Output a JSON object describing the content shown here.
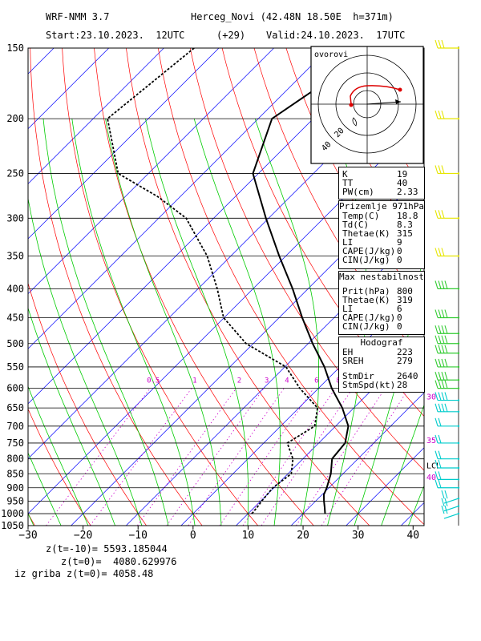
{
  "header": {
    "model": "WRF-NMM 3.7",
    "station": "Herceg_Novi (42.48N 18.50E  h=371m)",
    "start": "Start:23.10.2023.  12UTC",
    "offset": "(+29)",
    "valid": "Valid:24.10.2023.  17UTC"
  },
  "bottom_text": [
    "z(t=-10)= 5593.185044",
    "z(t=0)=  4080.629976",
    "iz griba z(t=0)= 4058.48"
  ],
  "indices_box": {
    "rows": [
      {
        "k": "K",
        "v": "19"
      },
      {
        "k": "TT",
        "v": "40"
      },
      {
        "k": "PW(cm)",
        "v": "2.33"
      }
    ]
  },
  "surface_box": {
    "title": "Prizemlje 971hPa",
    "rows": [
      {
        "k": "Temp(C)",
        "v": "18.8"
      },
      {
        "k": "Td(C)",
        "v": "8.3"
      },
      {
        "k": "Thetae(K)",
        "v": "315"
      },
      {
        "k": "LI",
        "v": "9"
      },
      {
        "k": "CAPE(J/kg)",
        "v": "0"
      },
      {
        "k": "CIN(J/kg)",
        "v": "0"
      }
    ]
  },
  "maxinst_box": {
    "title": "Max nestabilnost",
    "rows": [
      {
        "k": "Prit(hPa)",
        "v": "800"
      },
      {
        "k": "Thetae(K)",
        "v": "319"
      },
      {
        "k": "LI",
        "v": "6"
      },
      {
        "k": "CAPE(J/kg)",
        "v": "0"
      },
      {
        "k": "CIN(J/kg)",
        "v": "0"
      }
    ]
  },
  "hodograf_box": {
    "title": "Hodograf",
    "rows": [
      {
        "k": "EH",
        "v": "223"
      },
      {
        "k": "SREH",
        "v": "279"
      },
      {
        "k": "StmDir",
        "v": "2640"
      },
      {
        "k": "StmSpd(kt)",
        "v": "28"
      }
    ]
  },
  "hodograph": {
    "label": "ovorovi",
    "ring_labels": [
      "20",
      "40"
    ]
  },
  "colors": {
    "isotherm": "#0000ff",
    "dry_adiabat": "#ff0000",
    "moist_adiabat": "#00cc00",
    "mixing_ratio": "#cc00cc",
    "wind_barb_upper": "#e6e600",
    "wind_barb_mid": "#33cc33",
    "wind_barb_low": "#00cccc",
    "accent_label": "#cc00cc"
  },
  "chart_data": {
    "type": "line",
    "title": "",
    "xlabel": "",
    "ylabel": "",
    "pressure_levels": [
      150,
      200,
      250,
      300,
      350,
      400,
      450,
      500,
      550,
      600,
      650,
      700,
      750,
      800,
      850,
      900,
      950,
      1000,
      1050
    ],
    "x_ticks": [
      -30,
      -20,
      -10,
      0,
      10,
      20,
      30,
      40
    ],
    "xlim": [
      -30,
      42
    ],
    "ylim": [
      1050,
      150
    ],
    "mixing_ratio_labels": [
      "0.5",
      "1",
      "2",
      "3",
      "4",
      "6",
      "8"
    ],
    "right_axis_labels": [
      {
        "p": 620,
        "text": "30"
      },
      {
        "p": 740,
        "text": "35"
      },
      {
        "p": 820,
        "text": "LCL"
      },
      {
        "p": 860,
        "text": "40"
      }
    ],
    "series": [
      {
        "name": "temperature",
        "points": [
          [
            1000,
            24.0
          ],
          [
            975,
            22.8
          ],
          [
            950,
            21.5
          ],
          [
            925,
            20.3
          ],
          [
            900,
            19.6
          ],
          [
            850,
            17.8
          ],
          [
            800,
            15.3
          ],
          [
            750,
            14.8
          ],
          [
            700,
            12.3
          ],
          [
            650,
            7.9
          ],
          [
            600,
            2.4
          ],
          [
            550,
            -2.8
          ],
          [
            500,
            -9.2
          ],
          [
            450,
            -15.8
          ],
          [
            400,
            -22.8
          ],
          [
            350,
            -31.2
          ],
          [
            300,
            -40.5
          ],
          [
            250,
            -51.0
          ],
          [
            200,
            -57.5
          ],
          [
            150,
            -51.5
          ]
        ]
      },
      {
        "name": "dewpoint",
        "points": [
          [
            1000,
            10.7
          ],
          [
            975,
            10.5
          ],
          [
            950,
            10.2
          ],
          [
            900,
            9.8
          ],
          [
            850,
            10.6
          ],
          [
            800,
            8.2
          ],
          [
            750,
            4.3
          ],
          [
            700,
            6.2
          ],
          [
            650,
            3.4
          ],
          [
            600,
            -3.4
          ],
          [
            550,
            -9.8
          ],
          [
            500,
            -21.3
          ],
          [
            450,
            -30.1
          ],
          [
            400,
            -36.5
          ],
          [
            350,
            -44.3
          ],
          [
            300,
            -55.0
          ],
          [
            275,
            -64.0
          ],
          [
            250,
            -75.5
          ],
          [
            200,
            -87.4
          ],
          [
            150,
            -84.5
          ]
        ]
      }
    ]
  }
}
